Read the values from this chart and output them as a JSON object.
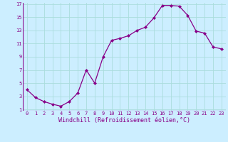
{
  "x": [
    0,
    1,
    2,
    3,
    4,
    5,
    6,
    7,
    8,
    9,
    10,
    11,
    12,
    13,
    14,
    15,
    16,
    17,
    18,
    19,
    20,
    21,
    22,
    23
  ],
  "y": [
    4.0,
    2.8,
    2.2,
    1.8,
    1.5,
    2.2,
    3.5,
    7.0,
    5.0,
    9.0,
    11.5,
    11.8,
    12.2,
    13.0,
    13.5,
    14.9,
    16.8,
    16.8,
    16.7,
    15.3,
    12.9,
    12.6,
    10.5,
    10.2
  ],
  "line_color": "#880088",
  "marker": "D",
  "marker_size": 2.0,
  "bg_color": "#cceeff",
  "grid_color": "#aadddd",
  "xlabel": "Windchill (Refroidissement éolien,°C)",
  "tick_color": "#880088",
  "ylim": [
    1,
    17
  ],
  "xlim": [
    -0.5,
    23.5
  ],
  "yticks": [
    1,
    3,
    5,
    7,
    9,
    11,
    13,
    15,
    17
  ],
  "xticks": [
    0,
    1,
    2,
    3,
    4,
    5,
    6,
    7,
    8,
    9,
    10,
    11,
    12,
    13,
    14,
    15,
    16,
    17,
    18,
    19,
    20,
    21,
    22,
    23
  ],
  "font_name": "monospace",
  "xlabel_fontsize": 6.0,
  "tick_fontsize": 5.0,
  "linewidth": 0.9
}
